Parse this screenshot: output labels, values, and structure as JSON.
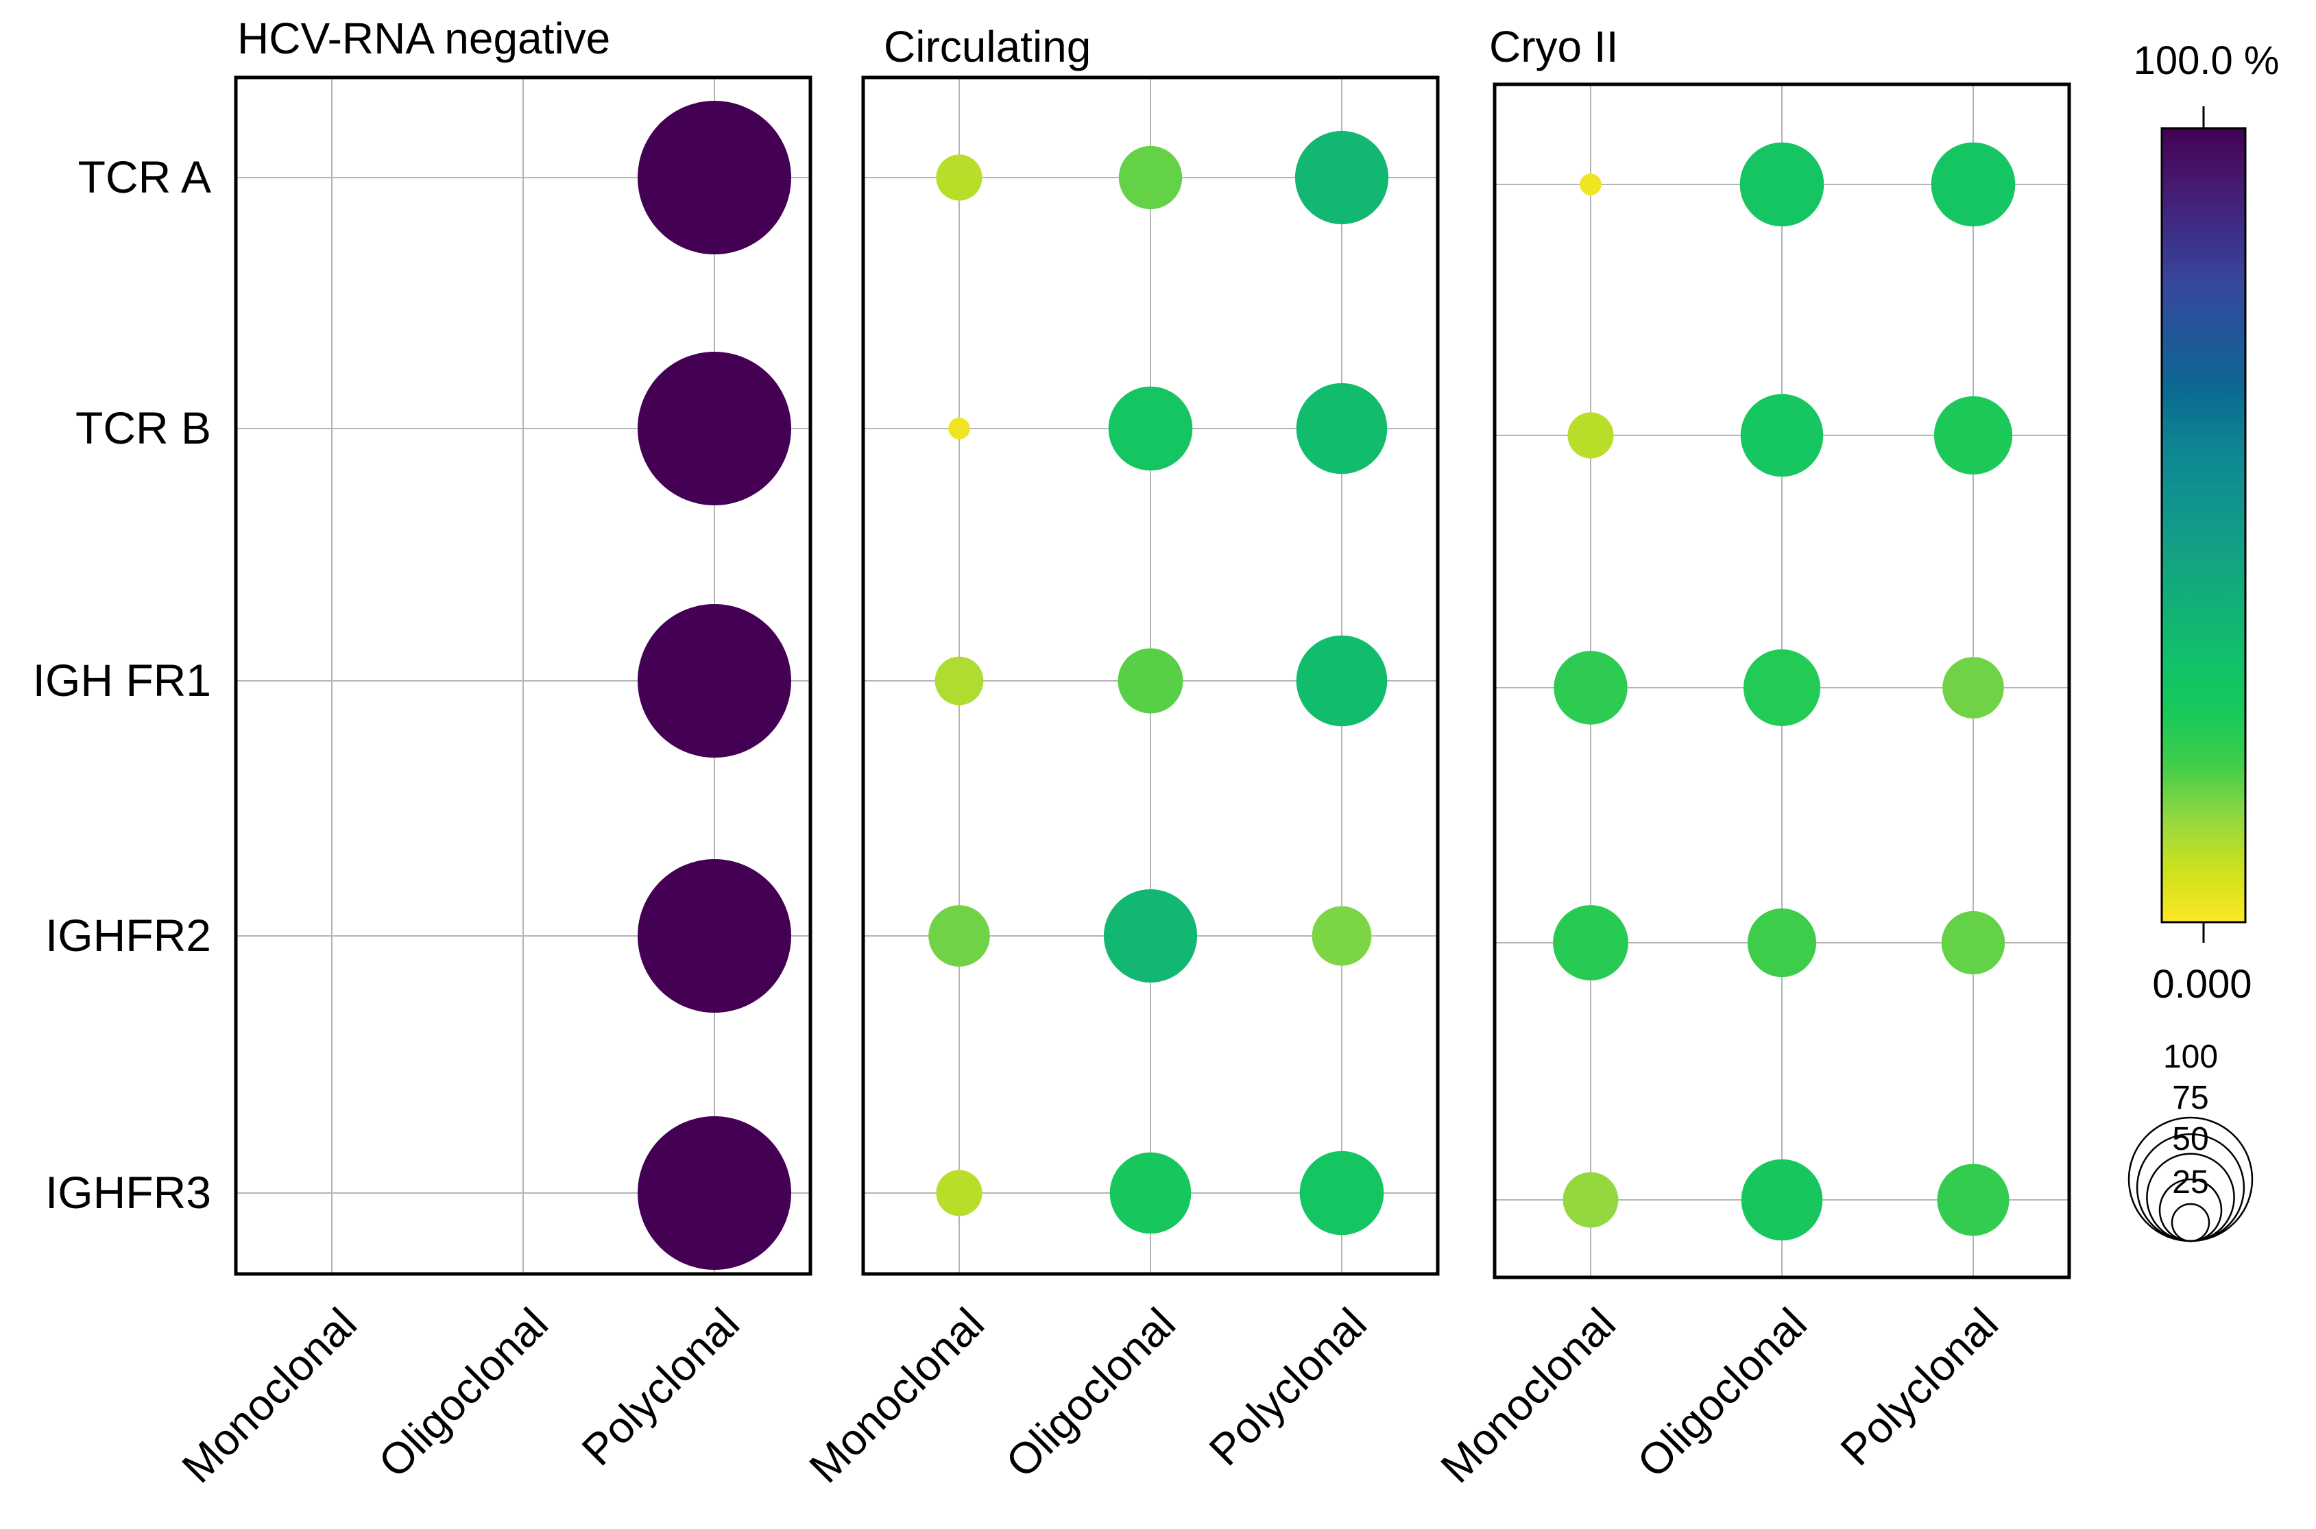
{
  "chart_data": {
    "type": "bubble-matrix",
    "rows": [
      "TCR A",
      "TCR B",
      "IGH FR1",
      "IGHFR2",
      "IGHFR3"
    ],
    "columns": [
      "Monoclonal",
      "Oligoclonal",
      "Polyclonal"
    ],
    "value_unit": "%",
    "panels": [
      {
        "title": "HCV-RNA negative",
        "values": [
          [
            0,
            0,
            100
          ],
          [
            0,
            0,
            100
          ],
          [
            0,
            0,
            100
          ],
          [
            0,
            0,
            100
          ],
          [
            0,
            0,
            100
          ]
        ]
      },
      {
        "title": "Circulating",
        "values": [
          [
            9,
            17,
            37
          ],
          [
            2,
            30,
            35
          ],
          [
            10,
            18,
            35
          ],
          [
            16,
            37,
            15
          ],
          [
            9,
            28,
            30
          ]
        ]
      },
      {
        "title": "Cryo II",
        "values": [
          [
            2,
            30,
            30
          ],
          [
            9,
            29,
            26
          ],
          [
            23,
            25,
            16
          ],
          [
            24,
            20,
            17
          ],
          [
            13,
            28,
            22
          ]
        ]
      }
    ],
    "colorbar": {
      "max_label": "100.0 %",
      "min_label": "0.000",
      "range": [
        0,
        100
      ],
      "colors": [
        "#fde725",
        "#cde11d",
        "#91d742",
        "#3ecd4a",
        "#18c95a",
        "#11c06a",
        "#12b077",
        "#13a184",
        "#10938e",
        "#0e8592",
        "#0b6a91",
        "#1f5899",
        "#35499d",
        "#3d2f88",
        "#46186e",
        "#440154"
      ]
    },
    "size_legend": {
      "labels": [
        "100",
        "75",
        "50",
        "25"
      ],
      "values": [
        100,
        75,
        50,
        25
      ]
    }
  }
}
